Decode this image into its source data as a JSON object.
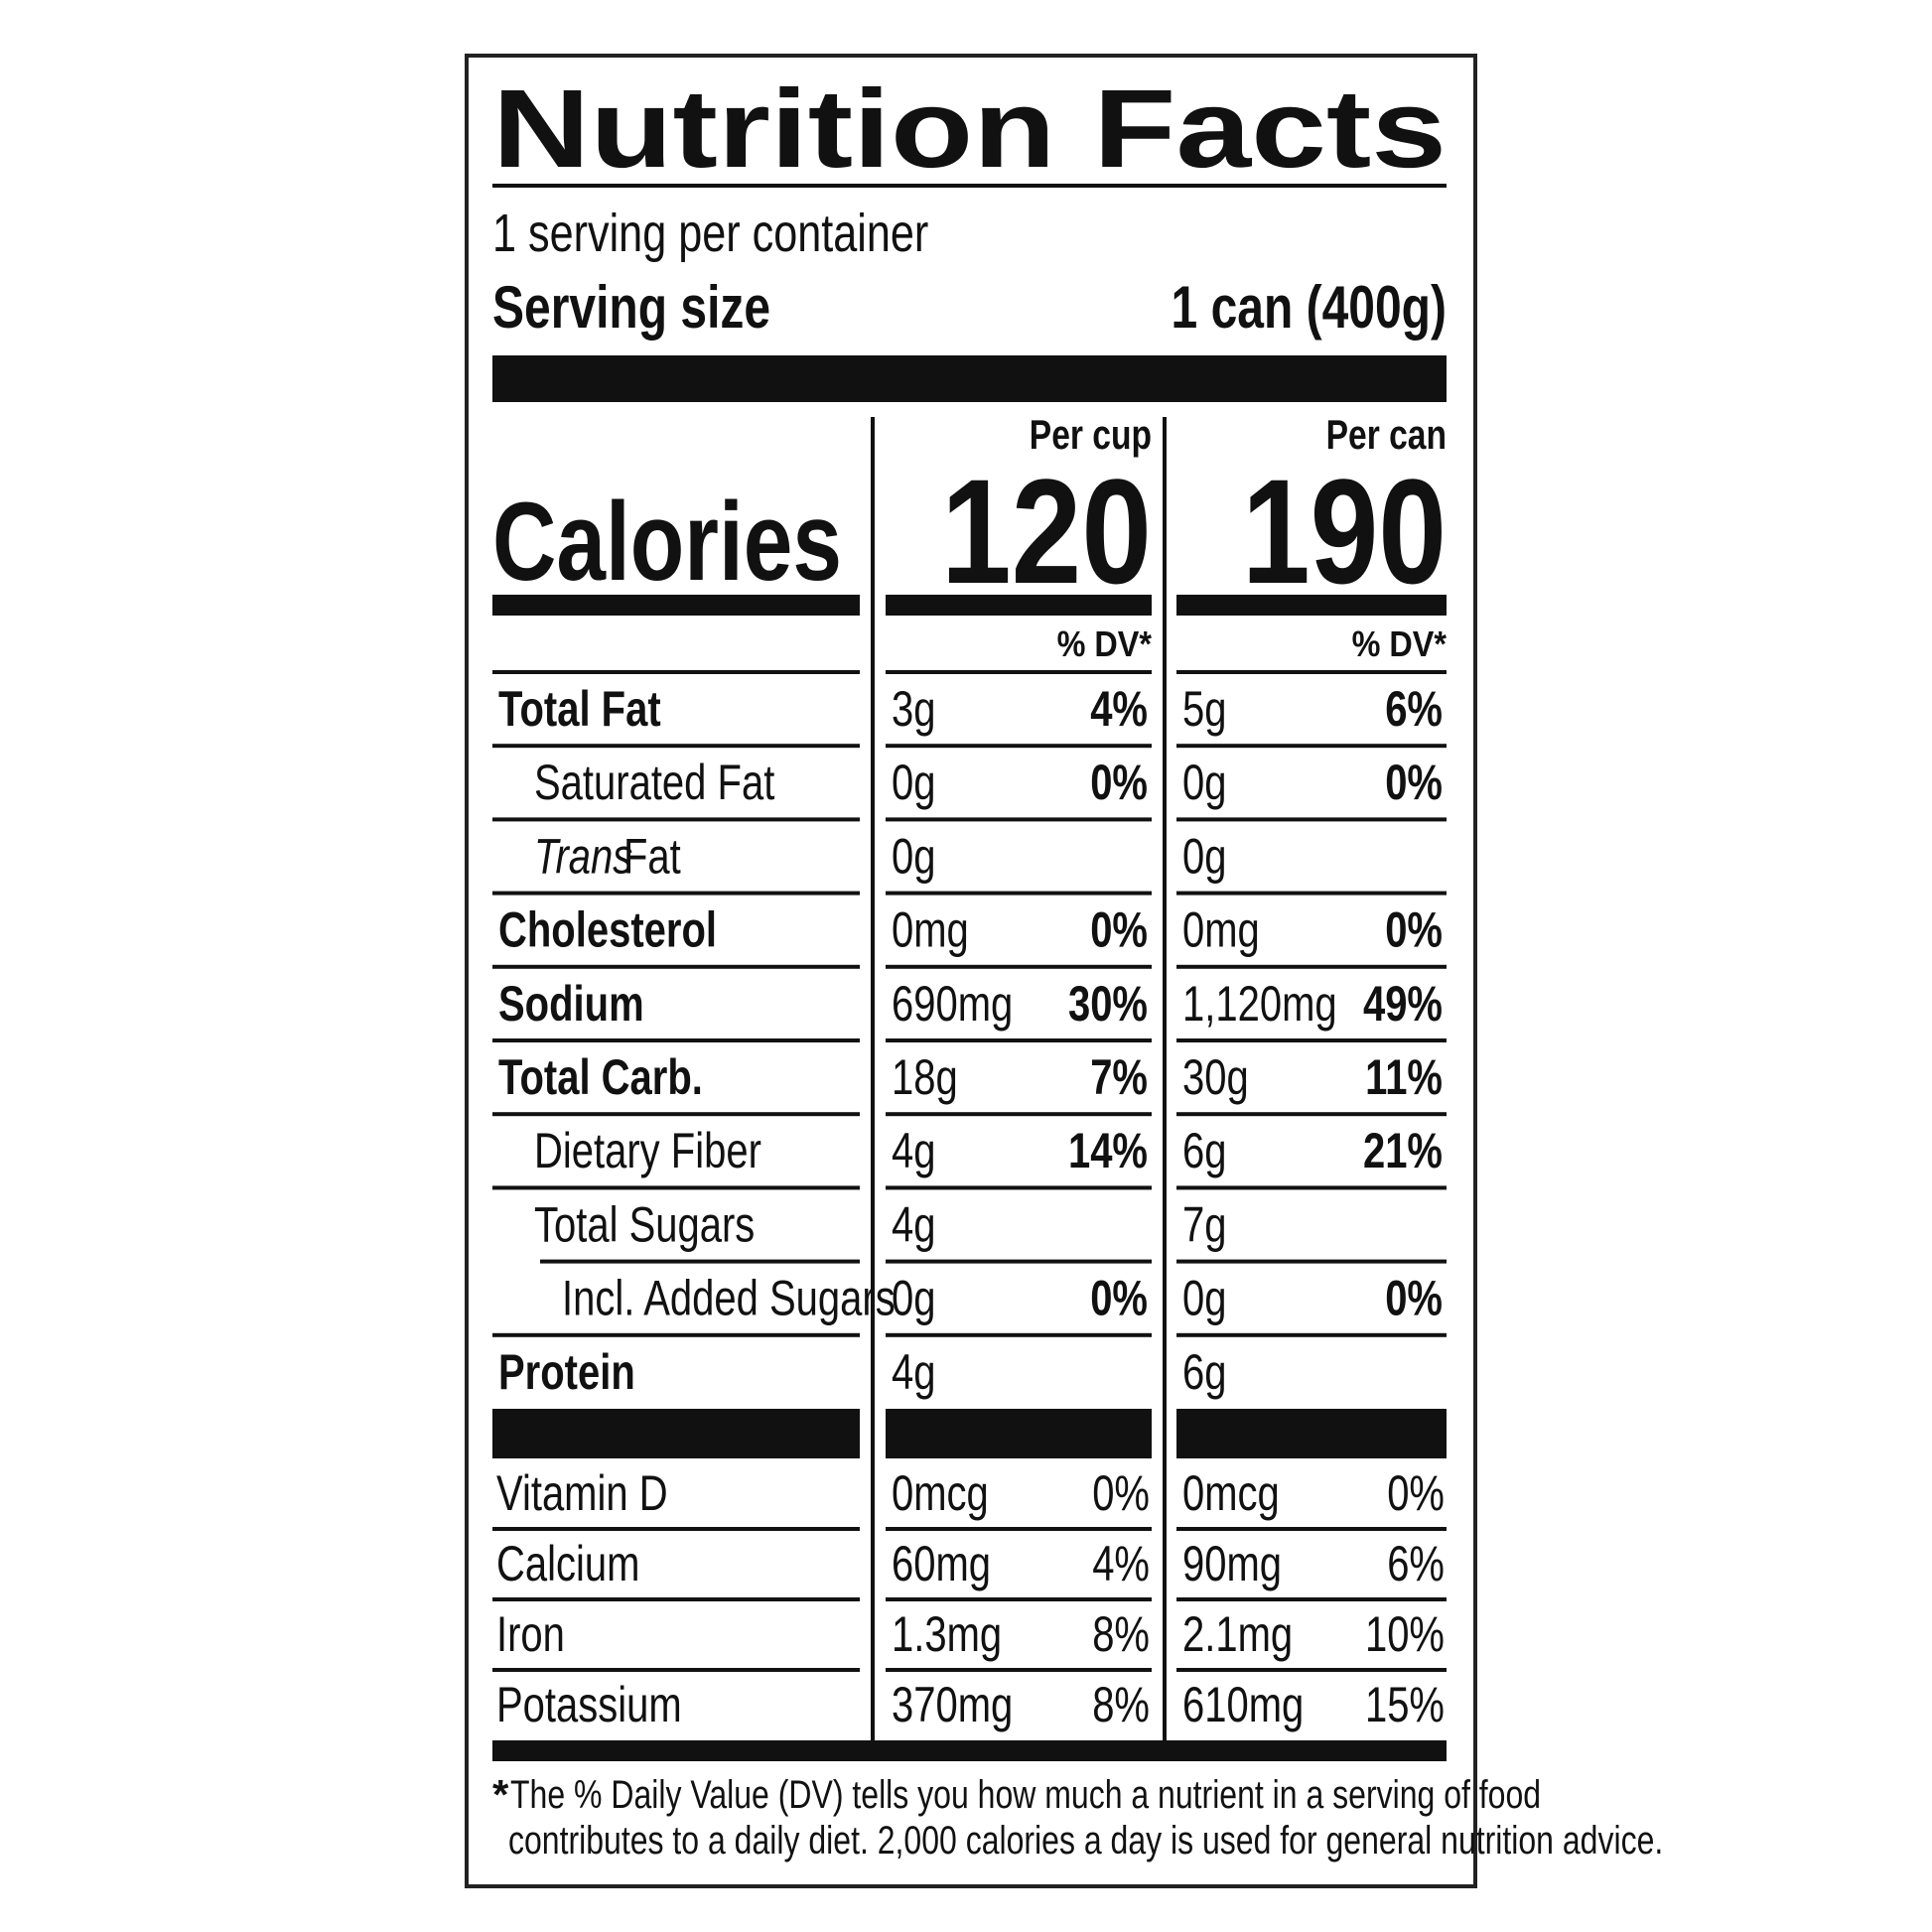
{
  "header": {
    "title": "Nutrition Facts",
    "servings": "1 serving per container",
    "serving_size_label": "Serving size",
    "serving_size_value": "1 can (400g)"
  },
  "calories": {
    "label": "Calories",
    "columns": [
      {
        "heading": "Per cup",
        "value": "120",
        "dv_heading": "% DV*"
      },
      {
        "heading": "Per can",
        "value": "190",
        "dv_heading": "% DV*"
      }
    ]
  },
  "nutrients": [
    {
      "name": "Total Fat",
      "bold": true,
      "indent": 0,
      "cells": [
        [
          "3g",
          "4%"
        ],
        [
          "5g",
          "6%"
        ]
      ]
    },
    {
      "name": "Saturated Fat",
      "bold": false,
      "indent": 1,
      "cells": [
        [
          "0g",
          "0%"
        ],
        [
          "0g",
          "0%"
        ]
      ]
    },
    {
      "name_italic": "Trans",
      "name": "Fat",
      "bold": false,
      "indent": 1,
      "cells": [
        [
          "0g",
          null
        ],
        [
          "0g",
          null
        ]
      ]
    },
    {
      "name": "Cholesterol",
      "bold": true,
      "indent": 0,
      "cells": [
        [
          "0mg",
          "0%"
        ],
        [
          "0mg",
          "0%"
        ]
      ]
    },
    {
      "name": "Sodium",
      "bold": true,
      "indent": 0,
      "cells": [
        [
          "690mg",
          "30%"
        ],
        [
          "1,120mg",
          "49%"
        ]
      ]
    },
    {
      "name": "Total Carb.",
      "bold": true,
      "indent": 0,
      "cells": [
        [
          "18g",
          "7%"
        ],
        [
          "30g",
          "11%"
        ]
      ]
    },
    {
      "name": "Dietary Fiber",
      "bold": false,
      "indent": 1,
      "cells": [
        [
          "4g",
          "14%"
        ],
        [
          "6g",
          "21%"
        ]
      ]
    },
    {
      "name": "Total Sugars",
      "bold": false,
      "indent": 1,
      "cells": [
        [
          "4g",
          null
        ],
        [
          "7g",
          null
        ]
      ]
    },
    {
      "name": "Incl. Added Sugars",
      "bold": false,
      "indent": 2,
      "cells": [
        [
          "0g",
          "0%"
        ],
        [
          "0g",
          "0%"
        ]
      ]
    },
    {
      "name": "Protein",
      "bold": true,
      "indent": 0,
      "cells": [
        [
          "4g",
          null
        ],
        [
          "6g",
          null
        ]
      ]
    }
  ],
  "vitamins": [
    {
      "name": "Vitamin D",
      "cells": [
        [
          "0mcg",
          "0%"
        ],
        [
          "0mcg",
          "0%"
        ]
      ]
    },
    {
      "name": "Calcium",
      "cells": [
        [
          "60mg",
          "4%"
        ],
        [
          "90mg",
          "6%"
        ]
      ]
    },
    {
      "name": "Iron",
      "cells": [
        [
          "1.3mg",
          "8%"
        ],
        [
          "2.1mg",
          "10%"
        ]
      ]
    },
    {
      "name": "Potassium",
      "cells": [
        [
          "370mg",
          "8%"
        ],
        [
          "610mg",
          "15%"
        ]
      ]
    }
  ],
  "footnote": {
    "star": "*",
    "lines": [
      "The % Daily Value (DV) tells you how much a nutrient in a serving of food",
      "contributes to a daily diet. 2,000 calories a day is used for general nutrition advice."
    ]
  }
}
